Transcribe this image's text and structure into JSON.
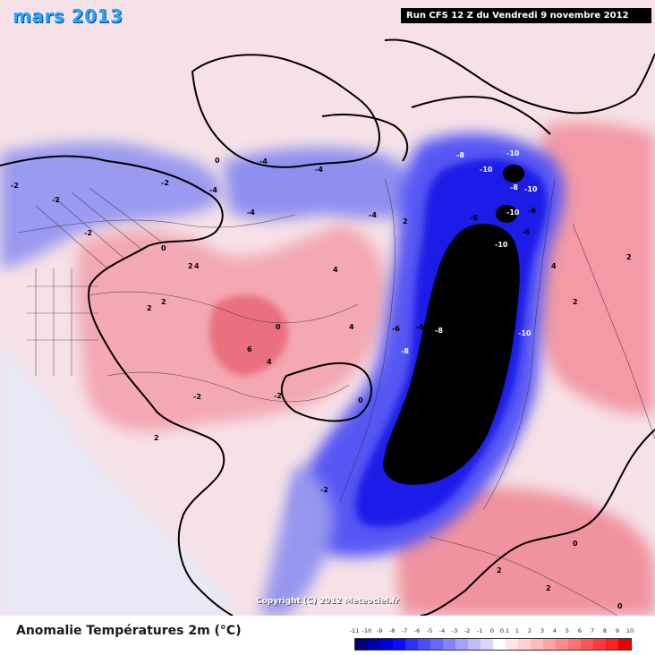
{
  "header": {
    "month_title": "mars 2013",
    "run_info": "Run CFS 12 Z du Vendredi 9 novembre 2012"
  },
  "footer": {
    "title": "Anomalie Températures 2m (°C)",
    "copyright": "Copyright (C) 2012 Meteociel.fr"
  },
  "legend": {
    "ticks": [
      "-11",
      "-10",
      "-9",
      "-8",
      "-7",
      "-6",
      "-5",
      "-4",
      "-3",
      "-2",
      "-1",
      "0",
      "0.1",
      "1",
      "2",
      "3",
      "4",
      "5",
      "6",
      "7",
      "8",
      "9",
      "10"
    ],
    "colors": [
      "#00007a",
      "#0000b0",
      "#0000dd",
      "#0b0bff",
      "#2e2eff",
      "#4b4bff",
      "#6767ff",
      "#8484ff",
      "#a1a1ff",
      "#bcbcff",
      "#d7d7ff",
      "#ffffff",
      "#ffe6e6",
      "#ffd2d2",
      "#ffbcbc",
      "#ffa3a3",
      "#ff8a8a",
      "#ff7070",
      "#ff5555",
      "#ff3a3a",
      "#ff2020",
      "#ee0000"
    ]
  },
  "map": {
    "anomaly_labels": [
      "-10",
      "-10",
      "-10",
      "-10",
      "-8",
      "-8",
      "-6",
      "-6",
      "-6",
      "-8",
      "-6",
      "-10",
      "-10",
      "-8",
      "-6",
      "-4",
      "-4",
      "-4",
      "-4",
      "-4",
      "-2",
      "-2",
      "-2",
      "-2",
      "-2",
      "-2",
      "-2",
      "0",
      "0",
      "0",
      "0",
      "0",
      "0",
      "2",
      "2",
      "2",
      "2",
      "2",
      "2",
      "2",
      "2",
      "2",
      "4",
      "4",
      "4",
      "4",
      "4",
      "6"
    ]
  }
}
